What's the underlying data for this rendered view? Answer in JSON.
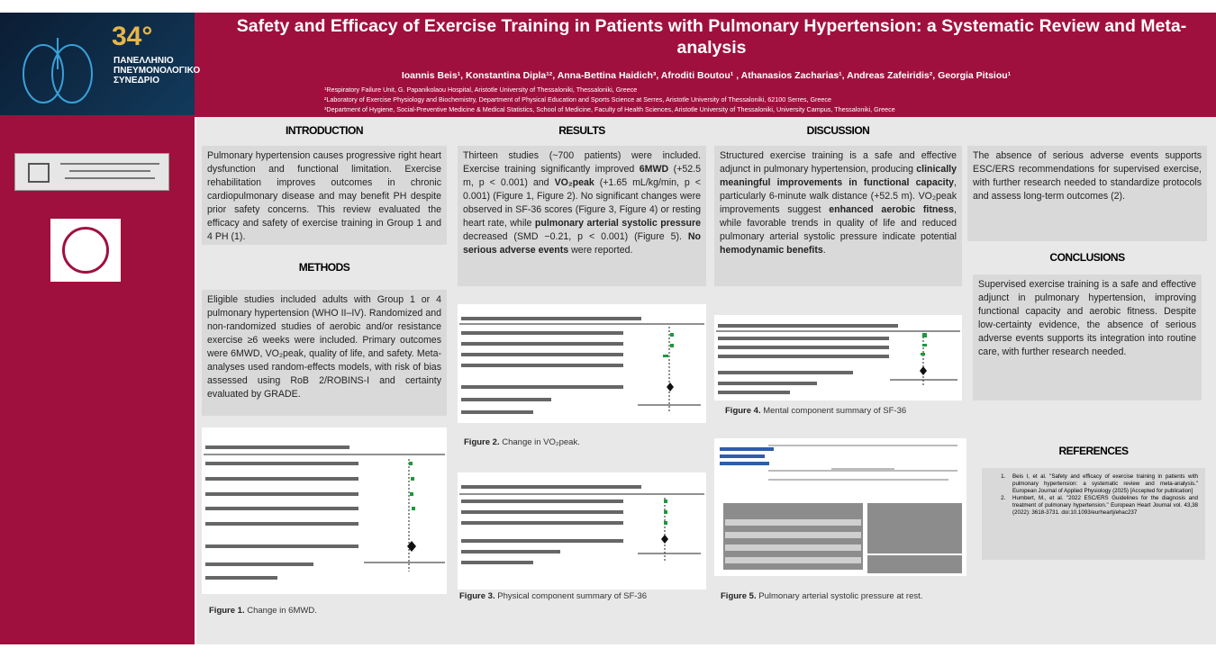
{
  "header": {
    "logo_number": "34°",
    "logo_lines": [
      "ΠΑΝΕΛΛΗΝΙΟ",
      "ΠΝΕΥΜΟΝΟΛΟΓΙΚΟ",
      "ΣΥΝΕΔΡΙΟ"
    ],
    "title": "Safety and Efficacy of Exercise Training in Patients with Pulmonary Hypertension: a Systematic Review and Meta-analysis",
    "authors": "Ioannis Beis¹, Konstantina Dipla¹², Anna-Bettina Haidich³, Afroditi Boutou¹ , Athanasios Zacharias¹, Andreas Zafeiridis², Georgia Pitsiou¹",
    "affiliations": [
      "¹Respiratory Failure Unit, G. Papanikolaou Hospital, Aristotle University of Thessaloniki, Thessaloniki, Greece",
      "²Laboratory of Exercise Physiology and Biochemistry, Department of Physical Education and Sports Science at Serres, Aristotle University of Thessaloniki, 62100 Serres, Greece",
      "³Department of Hygiene, Social-Preventive Medicine & Medical Statistics, School of Medicine, Faculty of Health Sciences, Aristotle University of Thessaloniki, University Campus, Thessaloniki, Greece"
    ]
  },
  "introduction": {
    "heading": "INTRODUCTION",
    "runs": [
      {
        "t": "Pulmonary hypertension causes progressive right heart dysfunction and functional limitation. Exercise rehabilitation improves outcomes in chronic cardiopulmonary disease and may benefit PH despite prior safety concerns. This review evaluated the efficacy and safety of exercise training in Group 1 and 4 PH (1).",
        "b": false
      }
    ]
  },
  "methods": {
    "heading": "METHODS",
    "runs": [
      {
        "t": "Eligible studies included adults with Group 1 or 4 pulmonary hypertension (WHO II–IV). Randomized and non-randomized studies of aerobic and/or resistance exercise ≥6 weeks were included. Primary outcomes were 6MWD, VO₂peak, quality of life, and safety. Meta-analyses used random-effects models, with risk of bias assessed using RoB 2/ROBINS-I and certainty evaluated by GRADE.",
        "b": false
      }
    ]
  },
  "results": {
    "heading": "RESULTS",
    "runs": [
      {
        "t": "Thirteen studies (~700 patients) were included. Exercise training significantly improved ",
        "b": false
      },
      {
        "t": "6MWD",
        "b": true
      },
      {
        "t": " (+52.5 m, p < 0.001) and ",
        "b": false
      },
      {
        "t": "VO₂peak",
        "b": true
      },
      {
        "t": " (+1.65 mL/kg/min, p < 0.001) (Figure 1, Figure 2). No significant changes were observed in SF-36 scores (Figure 3, Figure 4) or resting heart rate, while ",
        "b": false
      },
      {
        "t": "pulmonary arterial systolic pressure",
        "b": true
      },
      {
        "t": " decreased (SMD −0.21, p < 0.001) (Figure 5). ",
        "b": false
      },
      {
        "t": "No serious adverse events",
        "b": true
      },
      {
        "t": " were reported.",
        "b": false
      }
    ]
  },
  "discussion": {
    "heading": "DISCUSSION",
    "runs": [
      {
        "t": "Structured exercise training is a safe and effective adjunct in pulmonary hypertension, producing ",
        "b": false
      },
      {
        "t": "clinically meaningful improvements in functional capacity",
        "b": true
      },
      {
        "t": ", particularly 6-minute walk distance (+52.5 m). VO₂peak improvements suggest ",
        "b": false
      },
      {
        "t": "enhanced aerobic fitness",
        "b": true
      },
      {
        "t": ", while favorable trends in quality of life and reduced pulmonary arterial systolic pressure indicate potential ",
        "b": false
      },
      {
        "t": "hemodynamic benefits",
        "b": true
      },
      {
        "t": ".",
        "b": false
      }
    ],
    "continued": [
      {
        "t": "The absence of serious adverse events supports ESC/ERS recommendations for supervised exercise, with further research needed to standardize protocols and assess long-term outcomes (2).",
        "b": false
      }
    ]
  },
  "conclusions": {
    "heading": "CONCLUSIONS",
    "runs": [
      {
        "t": "Supervised exercise training is a safe and effective adjunct in pulmonary hypertension, improving functional capacity and aerobic fitness. Despite low-certainty evidence, the absence of serious adverse events supports its integration into routine care, with further research needed.",
        "b": false
      }
    ]
  },
  "references": {
    "heading": "REFERENCES",
    "items": [
      "Beis I, et al. \"Safety and efficacy of exercise training in patients with pulmonary hypertension: a systematic review and meta-analysis.\" European Journal of Applied Physiology (2025) [Accepted for publication]",
      "Humbert, M., et al. \"2022 ESC/ERS Guidelines for the diagnosis and treatment of pulmonary hypertension.\" European Heart Journal vol. 43,38 (2022): 3618-3731. doi:10.1093/eurheartj/ehac237"
    ]
  },
  "figures": [
    {
      "label": "Figure 1.",
      "caption": "Change in 6MWD."
    },
    {
      "label": "Figure 2.",
      "caption": "Change in VO₂peak."
    },
    {
      "label": "Figure 3.",
      "caption": "Physical component summary of SF-36"
    },
    {
      "label": "Figure 4.",
      "caption": "Mental component summary of SF-36"
    },
    {
      "label": "Figure 5.",
      "caption": "Pulmonary arterial systolic pressure at rest."
    }
  ]
}
